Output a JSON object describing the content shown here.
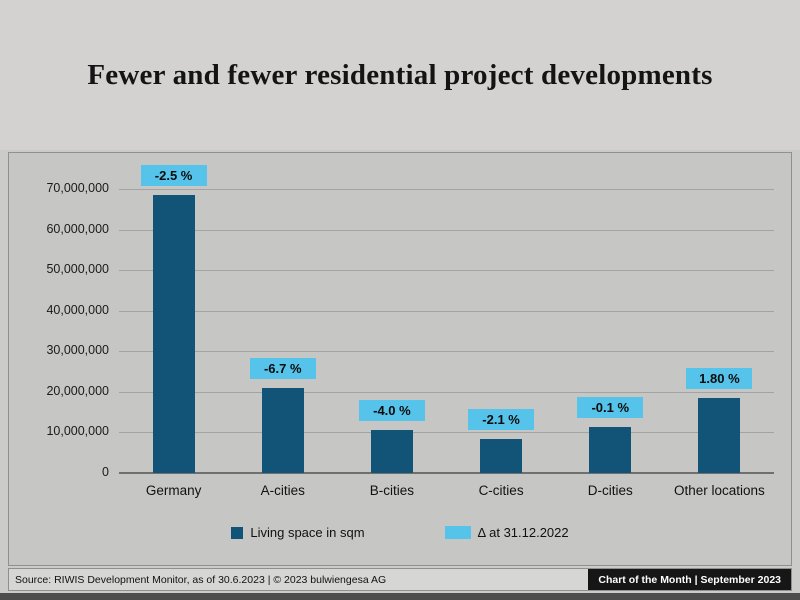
{
  "title": "Fewer and fewer residential project developments",
  "chart_data": {
    "type": "bar",
    "title": "Fewer and fewer residential project developments",
    "categories": [
      "Germany",
      "A-cities",
      "B-cities",
      "C-cities",
      "D-cities",
      "Other locations"
    ],
    "series": [
      {
        "name": "Living space in sqm",
        "values": [
          68500000,
          21000000,
          10500000,
          8300000,
          11400000,
          18500000
        ]
      }
    ],
    "delta_labels": [
      "-2.5 %",
      "-6.7 %",
      "-4.0 %",
      "-2.1 %",
      "-0.1 %",
      "1.80 %"
    ],
    "xlabel": "",
    "ylabel": "",
    "ylim": [
      0,
      70000000
    ],
    "ytick_step": 10000000,
    "ytick_labels": [
      "0",
      "10,000,000",
      "20,000,000",
      "30,000,000",
      "40,000,000",
      "50,000,000",
      "60,000,000",
      "70,000,000"
    ],
    "grid": true,
    "legend_position": "bottom",
    "legend": [
      {
        "label": "Living space in sqm",
        "color": "#125378",
        "shape": "square"
      },
      {
        "label": "Δ at 31.12.2022",
        "color": "#55c3ea",
        "shape": "rect"
      }
    ],
    "colors": {
      "bar": "#125378",
      "delta_badge": "#55c3ea"
    }
  },
  "footer": {
    "source": "Source: RIWIS Development Monitor, as of 30.6.2023  |  © 2023 bulwiengesa AG",
    "right": "Chart of the Month  | September 2023"
  }
}
